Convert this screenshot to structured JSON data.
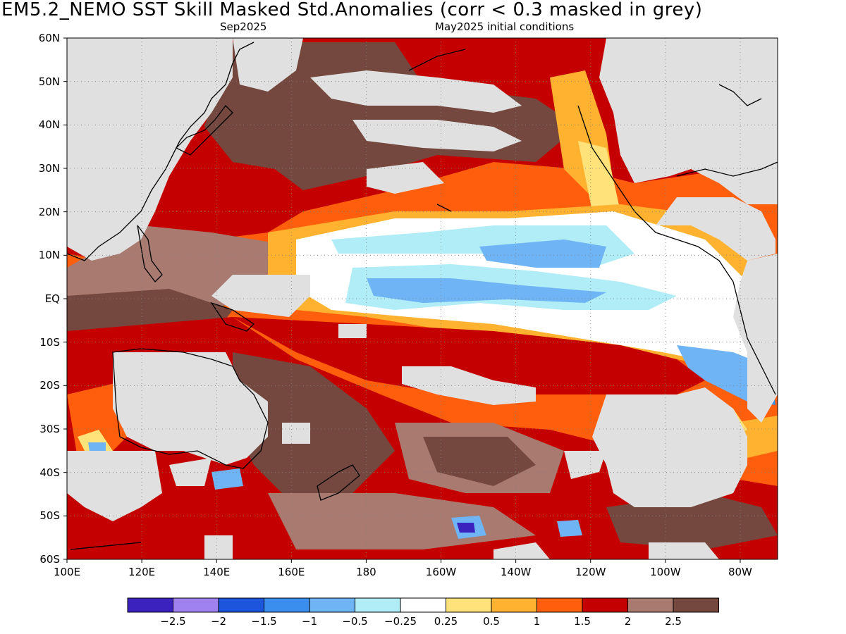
{
  "title": "EM5.2_NEMO  SST Skill Masked Std.Anomalies (corr < 0.3 masked in grey)",
  "subtitle_left": "Sep2025",
  "subtitle_right": "May2025 initial conditions",
  "lat_labels": [
    "60N",
    "50N",
    "40N",
    "30N",
    "20N",
    "10N",
    "EQ",
    "10S",
    "20S",
    "30S",
    "40S",
    "50S",
    "60S"
  ],
  "lon_labels": [
    "100E",
    "120E",
    "140E",
    "160E",
    "180",
    "160W",
    "140W",
    "120W",
    "100W",
    "80W"
  ],
  "extent": {
    "lon_min": 100,
    "lon_max": 290,
    "lat_min": -60,
    "lat_max": 60
  },
  "colorbar": {
    "colors": [
      "#3b22bf",
      "#9f82f0",
      "#1d55dc",
      "#3a8fee",
      "#6fb4f4",
      "#b0edf7",
      "#ffffff",
      "#ffe27a",
      "#ffb230",
      "#ff5f0c",
      "#c40000",
      "#a87a70",
      "#74483e"
    ],
    "labels": [
      "-2.5",
      "-2",
      "-1.5",
      "-1",
      "-0.5",
      "-0.25",
      "0.25",
      "0.5",
      "1",
      "1.5",
      "2",
      "2.5"
    ]
  },
  "mask_color": "#e0e0e0",
  "land_outline_color": "#000000"
}
